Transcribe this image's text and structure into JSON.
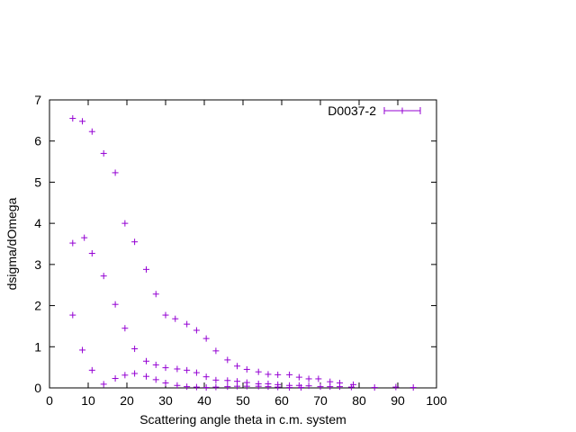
{
  "chart_data": {
    "type": "scatter",
    "title": "",
    "xlabel": "Scattering angle theta in c.m. system",
    "ylabel": "dsigma/dOmega",
    "xlim": [
      0,
      100
    ],
    "ylim": [
      0,
      7
    ],
    "xticks": [
      0,
      10,
      20,
      30,
      40,
      50,
      60,
      70,
      80,
      90,
      100
    ],
    "yticks": [
      0,
      1,
      2,
      3,
      4,
      5,
      6,
      7
    ],
    "grid": false,
    "legend_position": "top-right",
    "colors": {
      "series": "#9400d3",
      "axis": "#000000"
    },
    "series": [
      {
        "name": "D0037-2",
        "marker": "plus",
        "points": [
          [
            6,
            6.55
          ],
          [
            8.5,
            6.48
          ],
          [
            11,
            6.23
          ],
          [
            14,
            5.7
          ],
          [
            17,
            5.23
          ],
          [
            19.5,
            4.0
          ],
          [
            22,
            3.55
          ],
          [
            25,
            2.88
          ],
          [
            27.5,
            2.28
          ],
          [
            30,
            1.77
          ],
          [
            32.5,
            1.68
          ],
          [
            35.5,
            1.55
          ],
          [
            38,
            1.4
          ],
          [
            40.5,
            1.2
          ],
          [
            43,
            0.9
          ],
          [
            46,
            0.68
          ],
          [
            48.5,
            0.53
          ],
          [
            51,
            0.45
          ],
          [
            54,
            0.39
          ],
          [
            56.5,
            0.33
          ],
          [
            59,
            0.32
          ],
          [
            62,
            0.32
          ],
          [
            64.5,
            0.26
          ],
          [
            67,
            0.22
          ],
          [
            69.5,
            0.22
          ],
          [
            72.5,
            0.15
          ],
          [
            75,
            0.12
          ],
          [
            78.5,
            0.08
          ],
          [
            84,
            0.01
          ],
          [
            89.5,
            0.02
          ],
          [
            94,
            0.01
          ],
          [
            6,
            3.52
          ],
          [
            9,
            3.65
          ],
          [
            11,
            3.27
          ],
          [
            14,
            2.72
          ],
          [
            17,
            2.03
          ],
          [
            19.5,
            1.45
          ],
          [
            22,
            0.95
          ],
          [
            25,
            0.65
          ],
          [
            27.5,
            0.56
          ],
          [
            30,
            0.49
          ],
          [
            33,
            0.46
          ],
          [
            35.5,
            0.43
          ],
          [
            38,
            0.37
          ],
          [
            40.5,
            0.27
          ],
          [
            43,
            0.19
          ],
          [
            46,
            0.18
          ],
          [
            48.5,
            0.16
          ],
          [
            51,
            0.13
          ],
          [
            54,
            0.1
          ],
          [
            56.5,
            0.1
          ],
          [
            59,
            0.08
          ],
          [
            62,
            0.06
          ],
          [
            64.5,
            0.06
          ],
          [
            67,
            0.05
          ],
          [
            70,
            0.03
          ],
          [
            72.5,
            0.03
          ],
          [
            75,
            0.03
          ],
          [
            78,
            0.02
          ],
          [
            6,
            1.77
          ],
          [
            8.5,
            0.92
          ],
          [
            11,
            0.43
          ],
          [
            14,
            0.09
          ],
          [
            17,
            0.23
          ],
          [
            19.5,
            0.31
          ],
          [
            22,
            0.35
          ],
          [
            25,
            0.28
          ],
          [
            27.5,
            0.2
          ],
          [
            30,
            0.12
          ],
          [
            33,
            0.06
          ],
          [
            35.5,
            0.03
          ],
          [
            38,
            0.02
          ],
          [
            40.5,
            0.01
          ],
          [
            43,
            0.02
          ],
          [
            46,
            0.03
          ],
          [
            48.5,
            0.04
          ],
          [
            51,
            0.04
          ],
          [
            54,
            0.04
          ],
          [
            56.5,
            0.03
          ],
          [
            59,
            0.02
          ],
          [
            62,
            0.01
          ],
          [
            65,
            0.01
          ]
        ]
      }
    ]
  }
}
